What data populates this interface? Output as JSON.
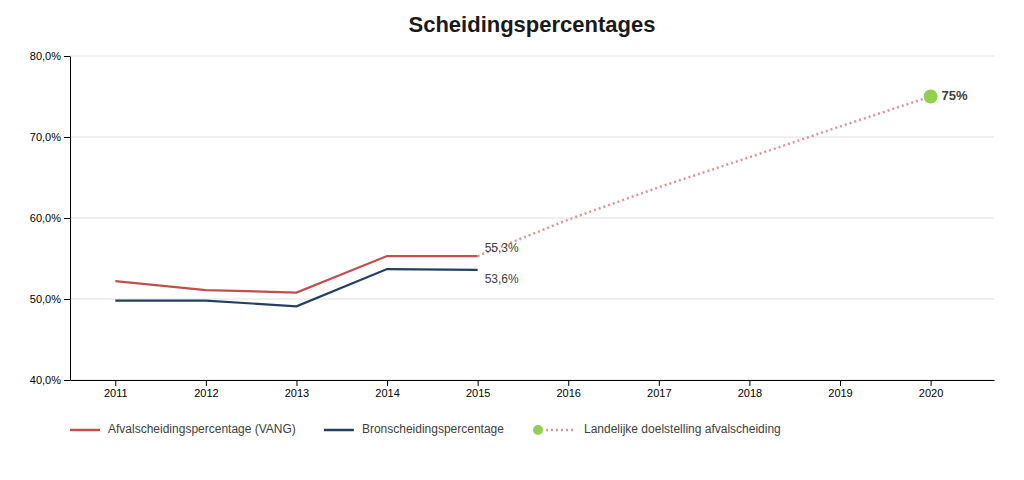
{
  "chart_data": {
    "type": "line",
    "title": "Scheidingspercentages",
    "x": [
      2011,
      2012,
      2013,
      2014,
      2015,
      2016,
      2017,
      2018,
      2019,
      2020
    ],
    "series": [
      {
        "name": "Afvalscheidingspercentage (VANG)",
        "color": "#c0504d",
        "line_style": "solid",
        "values": [
          0.522,
          0.511,
          0.508,
          0.553,
          0.553,
          null,
          null,
          null,
          null,
          null
        ]
      },
      {
        "name": "Bronscheidingspercentage",
        "color": "#243f60",
        "line_style": "solid",
        "values": [
          0.498,
          0.498,
          0.491,
          0.537,
          0.536,
          null,
          null,
          null,
          null,
          null
        ]
      },
      {
        "name": "Landelijke doelstelling afvalscheiding",
        "color": "#d99694",
        "line_style": "dotted",
        "values": [
          null,
          null,
          null,
          null,
          0.553,
          0.598,
          0.638,
          0.675,
          0.713,
          0.75
        ]
      }
    ],
    "goal": {
      "x": 2020,
      "value": 0.75,
      "label": "75%",
      "color": "#92d050"
    },
    "annotations": [
      {
        "text": "55,3%",
        "x": 2015,
        "y": 0.553
      },
      {
        "text": "53,6%",
        "x": 2015,
        "y": 0.536
      }
    ],
    "xlim": [
      2010.5,
      2020.7
    ],
    "xticks": [
      2011,
      2012,
      2013,
      2014,
      2015,
      2016,
      2017,
      2018,
      2019,
      2020
    ],
    "ylim": [
      0.4,
      0.8
    ],
    "yticks": [
      {
        "value": 0.4,
        "label": "40,0%"
      },
      {
        "value": 0.5,
        "label": "50,0%"
      },
      {
        "value": 0.6,
        "label": "60,0%"
      },
      {
        "value": 0.7,
        "label": "70,0%"
      },
      {
        "value": 0.8,
        "label": "80,0%"
      }
    ],
    "grid": "y",
    "legend": "bottom"
  }
}
